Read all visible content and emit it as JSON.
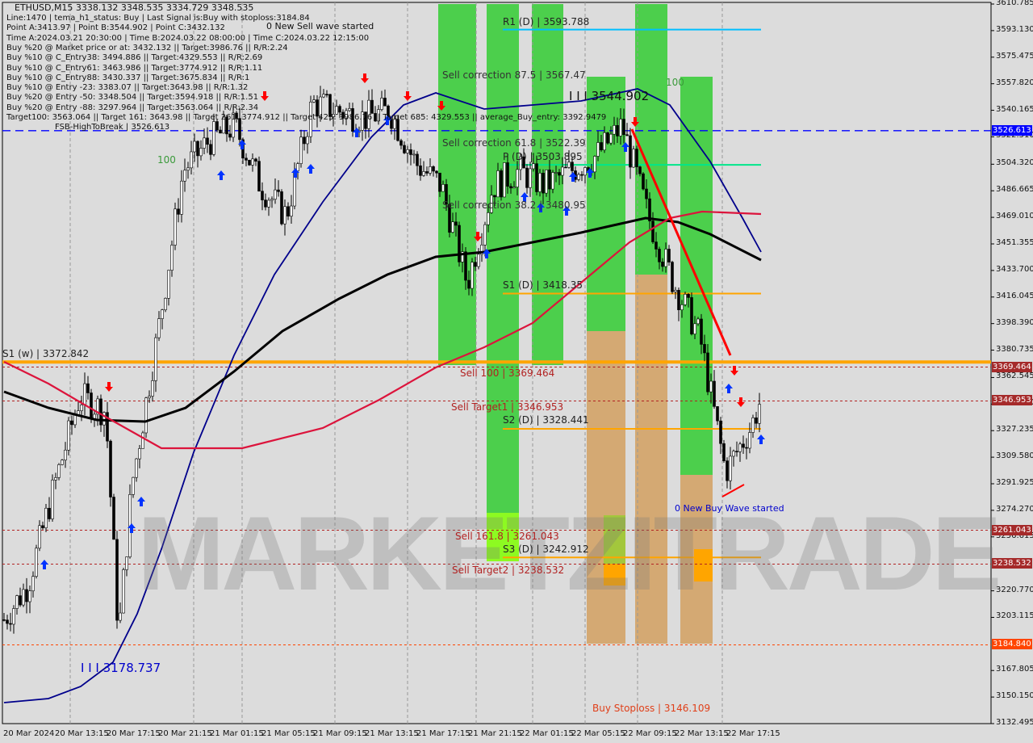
{
  "header": {
    "symbol_line": "ETHUSD,M15  3338.132 3348.535 3334.729 3348.535",
    "lines": [
      "Line:1470 | tema_h1_status: Buy | Last Signal is:Buy with stoploss:3184.84",
      "Point A:3413.97 | Point B:3544.902 | Point C:3432.132",
      "Time A:2024.03.21 20:30:00 | Time B:2024.03.22 08:00:00 | Time C:2024.03.22 12:15:00",
      "Buy %20 @ Market price or at: 3432.132 || Target:3986.76 || R/R:2.24",
      "Buy %10 @ C_Entry38: 3494.886 || Target:4329.553 || R/R:2.69",
      "Buy %10 @ C_Entry61: 3463.986 || Target:3774.912 || R/R:1.11",
      "Buy %10 @ C_Entry88: 3430.337 || Target:3675.834 || R/R:1",
      "Buy %10 @ Entry -23: 3383.07 || Target:3643.98 || R/R:1.32",
      "Buy %20 @ Entry -50: 3348.504 || Target:3594.918 || R/R:1.51",
      "Buy %20 @ Entry -88: 3297.964 || Target:3563.064 || R/R:2.34",
      "Target100: 3563.064 || Target 161: 3643.98 || Target 261: 3774.912 || Target 423: 3986.76 || Target 685: 4329.553 || average_Buy_entry: 3392.9479"
    ],
    "fsb": "FSB-HighToBreak | 3526.613"
  },
  "watermark": "MARKETZITRADE",
  "chart_data": {
    "type": "candlestick",
    "title": "ETHUSD,M15",
    "ylim": [
      3132.495,
      3610.785
    ],
    "y_ticks": [
      "3610.785",
      "3593.130",
      "3575.475",
      "3557.820",
      "3540.165",
      "3522.510",
      "3504.320",
      "3486.665",
      "3469.010",
      "3451.355",
      "3433.700",
      "3416.045",
      "3398.390",
      "3380.735",
      "3362.545",
      "3344.890",
      "3327.235",
      "3309.580",
      "3291.925",
      "3274.270",
      "3256.615",
      "3220.770",
      "3203.115",
      "3167.805",
      "3150.150",
      "3132.495"
    ],
    "x_ticks": [
      "20 Mar 2024",
      "20 Mar 13:15",
      "20 Mar 17:15",
      "20 Mar 21:15",
      "21 Mar 01:15",
      "21 Mar 05:15",
      "21 Mar 09:15",
      "21 Mar 13:15",
      "21 Mar 17:15",
      "21 Mar 21:15",
      "22 Mar 01:15",
      "22 Mar 05:15",
      "22 Mar 09:15",
      "22 Mar 13:15",
      "22 Mar 17:15"
    ],
    "price_path": [
      [
        "2024-03-20 09:15",
        3200
      ],
      [
        "2024-03-20 11:15",
        3225
      ],
      [
        "2024-03-20 13:15",
        3290
      ],
      [
        "2024-03-20 15:15",
        3350
      ],
      [
        "2024-03-20 17:15",
        3340
      ],
      [
        "2024-03-20 18:15",
        3190
      ],
      [
        "2024-03-20 19:15",
        3290
      ],
      [
        "2024-03-20 21:15",
        3390
      ],
      [
        "2024-03-20 23:15",
        3500
      ],
      [
        "2024-03-21 01:15",
        3520
      ],
      [
        "2024-03-21 03:15",
        3530
      ],
      [
        "2024-03-21 05:15",
        3490
      ],
      [
        "2024-03-21 07:15",
        3470
      ],
      [
        "2024-03-21 09:15",
        3545
      ],
      [
        "2024-03-21 11:15",
        3540
      ],
      [
        "2024-03-21 13:15",
        3535
      ],
      [
        "2024-03-21 15:15",
        3540
      ],
      [
        "2024-03-21 17:15",
        3505
      ],
      [
        "2024-03-21 19:15",
        3490
      ],
      [
        "2024-03-21 21:15",
        3425
      ],
      [
        "2024-03-21 23:15",
        3490
      ],
      [
        "2024-03-22 01:15",
        3500
      ],
      [
        "2024-03-22 03:15",
        3490
      ],
      [
        "2024-03-22 05:15",
        3500
      ],
      [
        "2024-03-22 07:15",
        3510
      ],
      [
        "2024-03-22 09:15",
        3530
      ],
      [
        "2024-03-22 11:15",
        3470
      ],
      [
        "2024-03-22 13:15",
        3425
      ],
      [
        "2024-03-22 15:15",
        3390
      ],
      [
        "2024-03-22 17:15",
        3300
      ],
      [
        "2024-03-22 19:15",
        3330
      ],
      [
        "2024-03-22 20:00",
        3348.535
      ]
    ],
    "levels": [
      {
        "label": "R1 (D) | 3593.788",
        "price": 3593.788,
        "color": "#00bfff",
        "scope": "daily"
      },
      {
        "label": "P (D) | 3503.895",
        "price": 3503.895,
        "color": "#00e68a",
        "scope": "daily"
      },
      {
        "label": "S1 (D) | 3418.35",
        "price": 3418.35,
        "color": "#ffa500",
        "scope": "daily"
      },
      {
        "label": "S2 (D) | 3328.441",
        "price": 3328.441,
        "color": "#ffa500",
        "scope": "daily"
      },
      {
        "label": "S3 (D) | 3242.912",
        "price": 3242.912,
        "color": "#ffa500",
        "scope": "daily"
      },
      {
        "label": "S1 (w) | 3372.842",
        "price": 3372.842,
        "color": "#ffa500",
        "scope": "weekly"
      }
    ],
    "dashed_levels": [
      {
        "label": "Sell 100 | 3369.464",
        "price": 3369.464,
        "tag": "3369.464",
        "color": "#b22222"
      },
      {
        "label": "Sell Target1 | 3346.953",
        "price": 3346.953,
        "tag": "3346.953",
        "color": "#b22222"
      },
      {
        "label": "Sell 161.8 | 3261.043",
        "price": 3261.043,
        "tag": "3261.043",
        "color": "#b22222"
      },
      {
        "label": "Sell Target2 | 3238.532",
        "price": 3238.532,
        "tag": "3238.532",
        "color": "#b22222"
      },
      {
        "label": "",
        "price": 3184.84,
        "tag": "3184.840",
        "color": "#ff4500"
      }
    ],
    "fsb_level": {
      "price": 3526.613,
      "tag": "3526.613",
      "color": "#0000ff"
    },
    "annotations": {
      "sell_wave": "0 New Sell wave started",
      "buy_wave": "0 New Buy Wave started",
      "point_b": "I I I 3544.902",
      "point_low": "I I I 3178.737",
      "corr875": "Sell correction 87.5 | 3567.47",
      "corr618": "Sell correction 61.8 | 3522.39",
      "corr382": "Sell correction 38.2 | 3480.95",
      "hundred_a": "100",
      "hundred_b": "100",
      "stoploss": "Buy Stoploss | 3146.109"
    },
    "colors": {
      "up_candle": "#ffffff",
      "down_candle": "#000000",
      "ma_fast": "#00008b",
      "ma_mid": "#000000",
      "ma_slow": "#dc143c",
      "zone_green": "#33cc33",
      "zone_orange": "#d2a060"
    }
  }
}
